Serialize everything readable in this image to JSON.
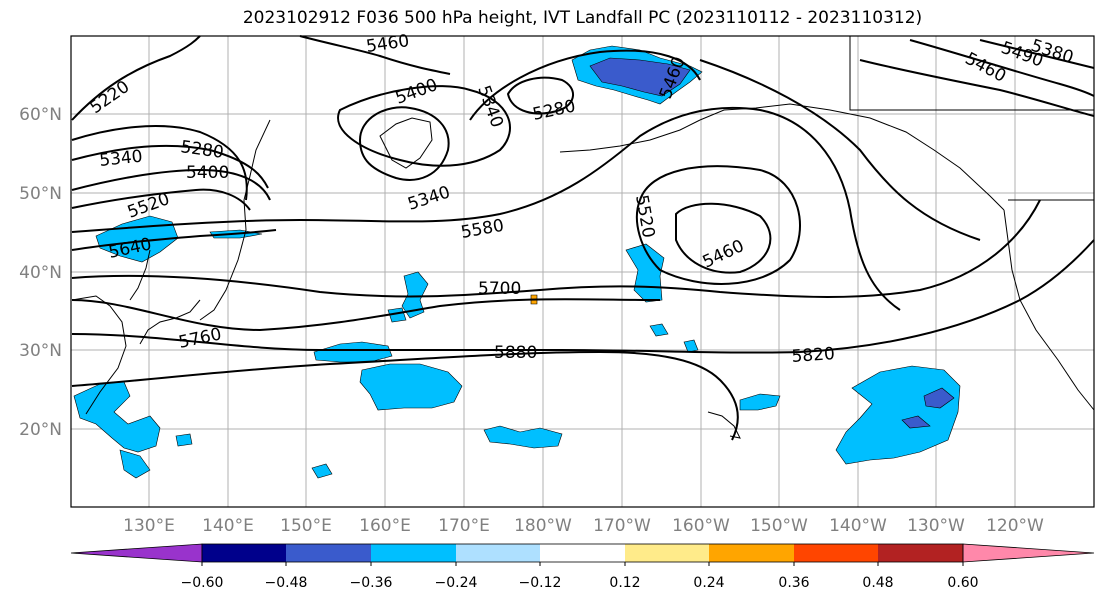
{
  "title": "2023102912 F036 500 hPa height, IVT Landfall PC (2023110112 - 2023110312)",
  "lat_labels": [
    "60°N",
    "50°N",
    "40°N",
    "30°N",
    "20°N"
  ],
  "lon_labels": [
    "130°E",
    "140°E",
    "150°E",
    "160°E",
    "170°E",
    "180°W",
    "170°W",
    "160°W",
    "150°W",
    "140°W",
    "130°W",
    "120°W"
  ],
  "contour_labels": [
    "5460",
    "5220",
    "5400",
    "5340",
    "5280",
    "5280",
    "5340",
    "5400",
    "5520",
    "5640",
    "5340",
    "5580",
    "5700",
    "5760",
    "5880",
    "5520",
    "5460",
    "5820",
    "5460",
    "5490",
    "5380",
    "5460"
  ],
  "colorbar": {
    "ticks": [
      "−0.60",
      "−0.48",
      "−0.36",
      "−0.24",
      "−0.12",
      "0.12",
      "0.24",
      "0.36",
      "0.48",
      "0.60"
    ],
    "colors": [
      "#9933cc",
      "#00008b",
      "#3a5bcc",
      "#00bfff",
      "#aee0ff",
      "#ffffff",
      "#ffeb8a",
      "#ffa500",
      "#ff4500",
      "#b22222",
      "#ff88aa"
    ]
  },
  "colors": {
    "grid": "#b0b0b0",
    "contour": "#000000",
    "axis_label": "#808080"
  }
}
